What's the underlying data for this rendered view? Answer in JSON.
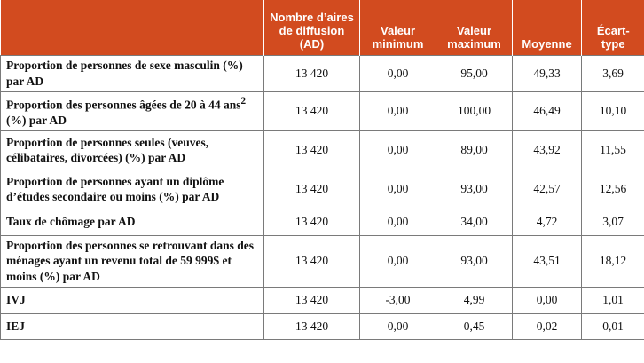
{
  "headers": {
    "blank": "",
    "ad": "Nombre d’aires de diffusion (AD)",
    "min": "Valeur minimum",
    "max": "Valeur maximum",
    "moyenne": "Moyenne",
    "ecart": "Écart-type"
  },
  "rows": [
    {
      "label": "Proportion de personnes de sexe masculin (%) par AD",
      "ad": "13 420",
      "min": "0,00",
      "max": "95,00",
      "moyenne": "49,33",
      "ecart": "3,69"
    },
    {
      "label_a": "Proportion des personnes âgées de 20 à 44 ans",
      "sup": "2",
      "label_b": " (%) par AD",
      "ad": "13 420",
      "min": "0,00",
      "max": "100,00",
      "moyenne": "46,49",
      "ecart": "10,10"
    },
    {
      "label": "Proportion de personnes seules (veuves, célibataires, divorcées) (%) par AD",
      "ad": "13 420",
      "min": "0,00",
      "max": "89,00",
      "moyenne": "43,92",
      "ecart": "11,55"
    },
    {
      "label": "Proportion de personnes ayant un diplôme d’études secondaire ou moins (%) par AD",
      "ad": "13 420",
      "min": "0,00",
      "max": "93,00",
      "moyenne": "42,57",
      "ecart": "12,56"
    },
    {
      "label": "Taux de chômage par AD",
      "ad": "13 420",
      "min": "0,00",
      "max": "34,00",
      "moyenne": "4,72",
      "ecart": "3,07"
    },
    {
      "label": "Proportion des personnes se retrouvant dans des ménages ayant un revenu total de 59 999$ et moins (%) par AD",
      "ad": "13 420",
      "min": "0,00",
      "max": "93,00",
      "moyenne": "43,51",
      "ecart": "18,12"
    },
    {
      "label": "IVJ",
      "ad": "13 420",
      "min": "-3,00",
      "max": "4,99",
      "moyenne": "0,00",
      "ecart": "1,01"
    },
    {
      "label": "IEJ",
      "ad": "13 420",
      "min": "0,00",
      "max": "0,45",
      "moyenne": "0,02",
      "ecart": "0,01"
    }
  ],
  "colors": {
    "header_bg": "#d24b1f",
    "header_text": "#ffffff",
    "border": "#7a7a7a"
  }
}
